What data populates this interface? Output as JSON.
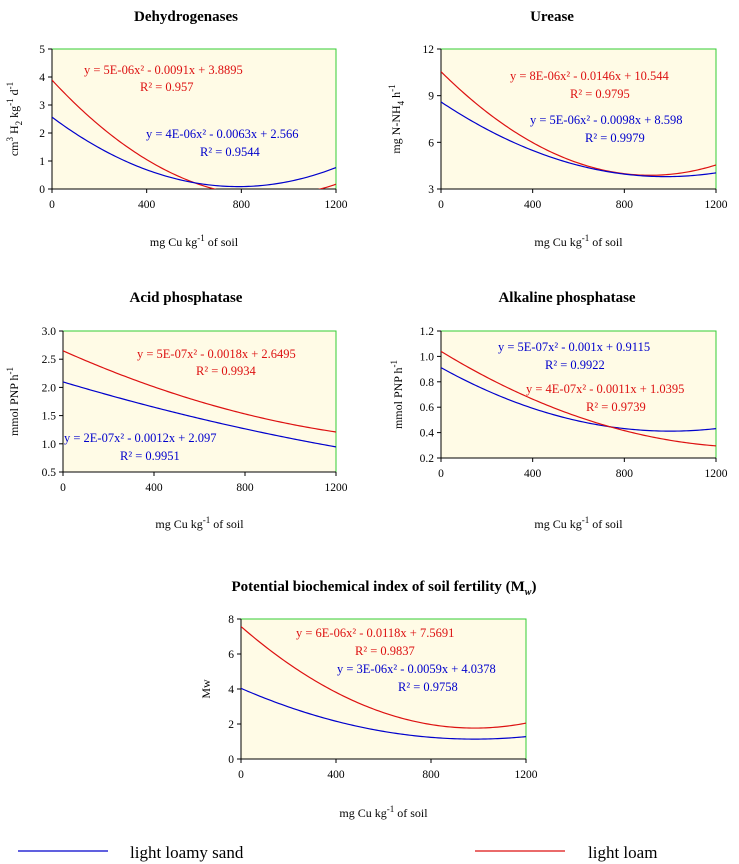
{
  "colors": {
    "light_loamy_sand": "#0000cc",
    "light_loam": "#dd1111",
    "plot_bg": "#fffbe6",
    "plot_border": "#33cc33"
  },
  "legend": {
    "series_a": "light loamy sand",
    "series_b": "light loam"
  },
  "chart_data": [
    {
      "id": "dehydrogenases",
      "type": "line",
      "title": "Dehydrogenases",
      "ylabel_parts": [
        "cm",
        "3",
        " H",
        "2",
        " kg",
        "-1",
        " d",
        "-1"
      ],
      "xlabel_parts": [
        "mg Cu  kg",
        "-1",
        " of soil"
      ],
      "xlim": [
        0,
        1200
      ],
      "ylim": [
        0,
        5
      ],
      "xticks": [
        0,
        400,
        800,
        1200
      ],
      "yticks": [
        0,
        1,
        2,
        3,
        4,
        5
      ],
      "tick_labels_x": [
        "0",
        "400",
        "800",
        "1200"
      ],
      "tick_labels_y": [
        "0",
        "1",
        "2",
        "3",
        "4",
        "5"
      ],
      "series": [
        {
          "key": "light_loam",
          "coef": [
            5e-06,
            -0.0091,
            3.8895
          ],
          "equation": "y = 5E-06x² - 0.0091x + 3.8895",
          "r2": "R² = 0.957"
        },
        {
          "key": "light_loamy_sand",
          "coef": [
            4e-06,
            -0.0063,
            2.566
          ],
          "equation": "y = 4E-06x² - 0.0063x + 2.566",
          "r2": "R² = 0.9544"
        }
      ]
    },
    {
      "id": "urease",
      "type": "line",
      "title": "Urease",
      "ylabel_parts": [
        "mg N-NH",
        "4",
        " h",
        "-1"
      ],
      "xlabel_parts": [
        "mg Cu  kg",
        "-1",
        " of soil"
      ],
      "xlim": [
        0,
        1200
      ],
      "ylim": [
        3,
        12
      ],
      "xticks": [
        0,
        400,
        800,
        1200
      ],
      "yticks": [
        3,
        6,
        9,
        12
      ],
      "tick_labels_x": [
        "0",
        "400",
        "800",
        "1200"
      ],
      "tick_labels_y": [
        "3",
        "6",
        "9",
        "12"
      ],
      "series": [
        {
          "key": "light_loam",
          "coef": [
            8e-06,
            -0.0146,
            10.544
          ],
          "equation": "y = 8E-06x² - 0.0146x + 10.544",
          "r2": "R² = 0.9795"
        },
        {
          "key": "light_loamy_sand",
          "coef": [
            5e-06,
            -0.0098,
            8.598
          ],
          "equation": "y = 5E-06x² - 0.0098x + 8.598",
          "r2": "R² = 0.9979"
        }
      ]
    },
    {
      "id": "acid_phosphatase",
      "type": "line",
      "title": "Acid phosphatase",
      "ylabel_parts": [
        "mmol PNP  h",
        "-1"
      ],
      "xlabel_parts": [
        "mg Cu  kg",
        "-1",
        " of soil"
      ],
      "xlim": [
        0,
        1200
      ],
      "ylim": [
        0.5,
        3.0
      ],
      "xticks": [
        0,
        400,
        800,
        1200
      ],
      "yticks": [
        0.5,
        1.0,
        1.5,
        2.0,
        2.5,
        3.0
      ],
      "tick_labels_x": [
        "0",
        "400",
        "800",
        "1200"
      ],
      "tick_labels_y": [
        "0.5",
        "1.0",
        "1.5",
        "2.0",
        "2.5",
        "3.0"
      ],
      "series": [
        {
          "key": "light_loam",
          "coef": [
            5e-07,
            -0.0018,
            2.6495
          ],
          "equation": "y = 5E-07x² - 0.0018x + 2.6495",
          "r2": "R² = 0.9934"
        },
        {
          "key": "light_loamy_sand",
          "coef": [
            2e-07,
            -0.0012,
            2.097
          ],
          "equation": "y = 2E-07x² - 0.0012x + 2.097",
          "r2": "R² = 0.9951"
        }
      ]
    },
    {
      "id": "alkaline_phosphatase",
      "type": "line",
      "title": "Alkaline phosphatase",
      "ylabel_parts": [
        "mmol PNP  h",
        "-1"
      ],
      "xlabel_parts": [
        "mg Cu  kg",
        "-1",
        " of soil"
      ],
      "xlim": [
        0,
        1200
      ],
      "ylim": [
        0.2,
        1.2
      ],
      "xticks": [
        0,
        400,
        800,
        1200
      ],
      "yticks": [
        0.2,
        0.4,
        0.6,
        0.8,
        1.0,
        1.2
      ],
      "tick_labels_x": [
        "0",
        "400",
        "800",
        "1200"
      ],
      "tick_labels_y": [
        "0.2",
        "0.4",
        "0.6",
        "0.8",
        "1.0",
        "1.2"
      ],
      "series": [
        {
          "key": "light_loamy_sand",
          "coef": [
            5e-07,
            -0.001,
            0.9115
          ],
          "equation": "y = 5E-07x² - 0.001x + 0.9115",
          "r2": "R² = 0.9922"
        },
        {
          "key": "light_loam",
          "coef": [
            4e-07,
            -0.0011,
            1.0395
          ],
          "equation": "y = 4E-07x² - 0.0011x + 1.0395",
          "r2": "R² = 0.9739"
        }
      ]
    },
    {
      "id": "mw_index",
      "type": "line",
      "title_parts": [
        "Potential biochemical index of soil fertility (M",
        "w",
        ")"
      ],
      "ylabel_parts": [
        "Mw"
      ],
      "xlabel_parts": [
        "mg Cu  kg",
        "-1",
        " of soil"
      ],
      "xlim": [
        0,
        1200
      ],
      "ylim": [
        0,
        8
      ],
      "xticks": [
        0,
        400,
        800,
        1200
      ],
      "yticks": [
        0,
        2,
        4,
        6,
        8
      ],
      "tick_labels_x": [
        "0",
        "400",
        "800",
        "1200"
      ],
      "tick_labels_y": [
        "0",
        "2",
        "4",
        "6",
        "8"
      ],
      "series": [
        {
          "key": "light_loam",
          "coef": [
            6e-06,
            -0.0118,
            7.5691
          ],
          "equation": "y = 6E-06x² - 0.0118x + 7.5691",
          "r2": "R² = 0.9837"
        },
        {
          "key": "light_loamy_sand",
          "coef": [
            3e-06,
            -0.0059,
            4.0378
          ],
          "equation": "y = 3E-06x² - 0.0059x + 4.0378",
          "r2": "R² = 0.9758"
        }
      ]
    }
  ]
}
